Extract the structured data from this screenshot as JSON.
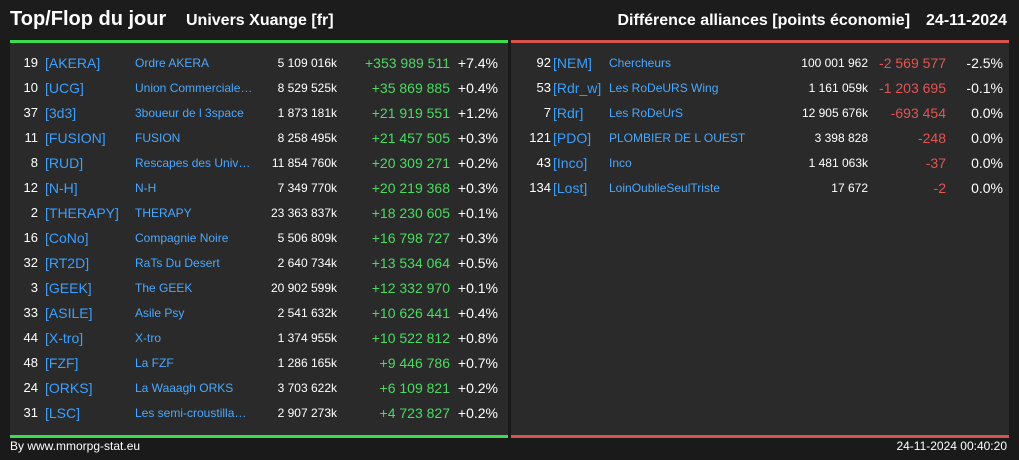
{
  "header": {
    "title": "Top/Flop du jour",
    "universe": "Univers Xuange [fr]",
    "metric": "Différence alliances [points économie]",
    "date": "24-11-2024"
  },
  "top": [
    {
      "rank": "19",
      "tag": "[AKERA]",
      "name": "Ordre AKERA",
      "points": "5 109 016k",
      "diff": "+353 989 511",
      "pct": "+7.4%"
    },
    {
      "rank": "10",
      "tag": "[UCG]",
      "name": "Union Commerciale…",
      "points": "8 529 525k",
      "diff": "+35 869 885",
      "pct": "+0.4%"
    },
    {
      "rank": "37",
      "tag": "[3d3]",
      "name": "3boueur de l 3space",
      "points": "1 873 181k",
      "diff": "+21 919 551",
      "pct": "+1.2%"
    },
    {
      "rank": "11",
      "tag": "[FUSION]",
      "name": "FUSION",
      "points": "8 258 495k",
      "diff": "+21 457 505",
      "pct": "+0.3%"
    },
    {
      "rank": "8",
      "tag": "[RUD]",
      "name": "Rescapes des Univ…",
      "points": "11 854 760k",
      "diff": "+20 309 271",
      "pct": "+0.2%"
    },
    {
      "rank": "12",
      "tag": "[N-H]",
      "name": "N-H",
      "points": "7 349 770k",
      "diff": "+20 219 368",
      "pct": "+0.3%"
    },
    {
      "rank": "2",
      "tag": "[THERAPY]",
      "name": "THERAPY",
      "points": "23 363 837k",
      "diff": "+18 230 605",
      "pct": "+0.1%"
    },
    {
      "rank": "16",
      "tag": "[CoNo]",
      "name": "Compagnie Noire",
      "points": "5 506 809k",
      "diff": "+16 798 727",
      "pct": "+0.3%"
    },
    {
      "rank": "32",
      "tag": "[RT2D]",
      "name": "RaTs Du Desert",
      "points": "2 640 734k",
      "diff": "+13 534 064",
      "pct": "+0.5%"
    },
    {
      "rank": "3",
      "tag": "[GEEK]",
      "name": "The GEEK",
      "points": "20 902 599k",
      "diff": "+12 332 970",
      "pct": "+0.1%"
    },
    {
      "rank": "33",
      "tag": "[ASILE]",
      "name": "Asile Psy",
      "points": "2 541 632k",
      "diff": "+10 626 441",
      "pct": "+0.4%"
    },
    {
      "rank": "44",
      "tag": "[X-tro]",
      "name": "X-tro",
      "points": "1 374 955k",
      "diff": "+10 522 812",
      "pct": "+0.8%"
    },
    {
      "rank": "48",
      "tag": "[FZF]",
      "name": "La FZF",
      "points": "1 286 165k",
      "diff": "+9 446 786",
      "pct": "+0.7%"
    },
    {
      "rank": "24",
      "tag": "[ORKS]",
      "name": "La Waaagh ORKS",
      "points": "3 703 622k",
      "diff": "+6 109 821",
      "pct": "+0.2%"
    },
    {
      "rank": "31",
      "tag": "[LSC]",
      "name": "Les semi-croustilla…",
      "points": "2 907 273k",
      "diff": "+4 723 827",
      "pct": "+0.2%"
    }
  ],
  "flop": [
    {
      "rank": "92",
      "tag": "[NEM]",
      "name": "Chercheurs",
      "points": "100 001 962",
      "diff": "-2 569 577",
      "pct": "-2.5%"
    },
    {
      "rank": "53",
      "tag": "[Rdr_w]",
      "name": "Les RoDeURS Wing",
      "points": "1 161 059k",
      "diff": "-1 203 695",
      "pct": "-0.1%"
    },
    {
      "rank": "7",
      "tag": "[Rdr]",
      "name": "Les RoDeUrS",
      "points": "12 905 676k",
      "diff": "-693 454",
      "pct": "0.0%"
    },
    {
      "rank": "121",
      "tag": "[PDO]",
      "name": "PLOMBIER DE L OUEST",
      "points": "3 398 828",
      "diff": "-248",
      "pct": "0.0%"
    },
    {
      "rank": "43",
      "tag": "[Inco]",
      "name": "Inco",
      "points": "1 481 063k",
      "diff": "-37",
      "pct": "0.0%"
    },
    {
      "rank": "134",
      "tag": "[Lost]",
      "name": "LoinOublieSeulTriste",
      "points": "17 672",
      "diff": "-2",
      "pct": "0.0%"
    }
  ],
  "footer": {
    "source": "By www.mmorpg-stat.eu",
    "timestamp": "24-11-2024 00:40:20"
  },
  "colors": {
    "top_accent": "#3ddc4f",
    "flop_accent": "#d9534f",
    "tag": "#3aa0ff",
    "positive": "#4cd964",
    "negative": "#e05555"
  }
}
